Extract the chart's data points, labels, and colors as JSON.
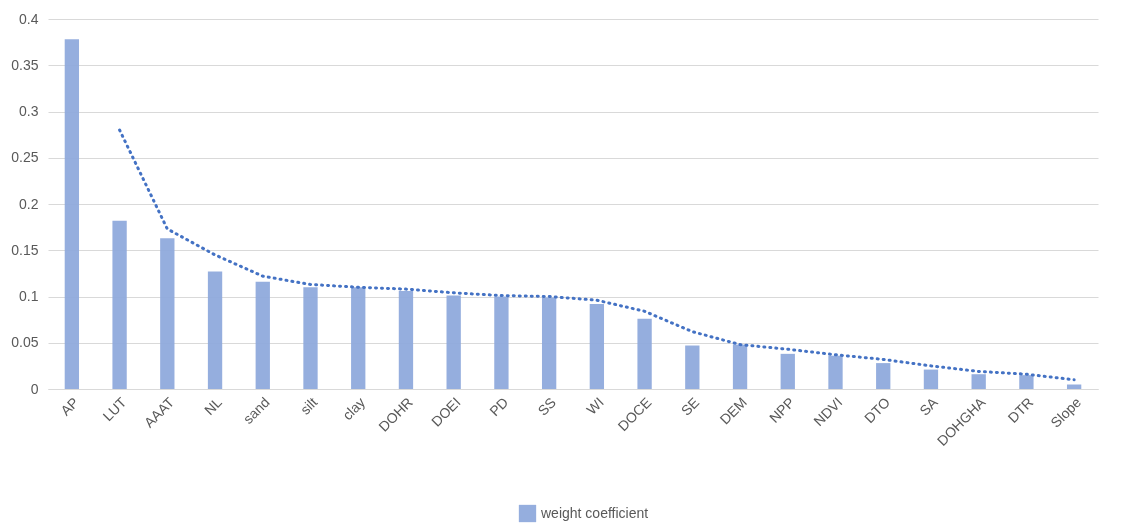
{
  "chart_data": {
    "type": "bar",
    "categories": [
      "AP",
      "LUT",
      "AAAT",
      "NL",
      "sand",
      "silt",
      "clay",
      "DOHR",
      "DOEI",
      "PD",
      "SS",
      "WI",
      "DOCE",
      "SE",
      "DEM",
      "NPP",
      "NDVI",
      "DTO",
      "SA",
      "DOHGHA",
      "DTR",
      "Slope"
    ],
    "series": [
      {
        "name": "weight coefficient",
        "color": "#8faadc",
        "values": [
          0.378,
          0.182,
          0.163,
          0.127,
          0.116,
          0.11,
          0.11,
          0.106,
          0.101,
          0.1,
          0.099,
          0.092,
          0.076,
          0.047,
          0.048,
          0.038,
          0.036,
          0.028,
          0.021,
          0.016,
          0.015,
          0.005
        ]
      },
      {
        "type": "line",
        "color": "#4472c4",
        "line_style": "dotted",
        "values": [
          null,
          0.28,
          0.173,
          0.145,
          0.122,
          0.113,
          0.11,
          0.108,
          0.104,
          0.101,
          0.1,
          0.096,
          0.084,
          0.062,
          0.048,
          0.043,
          0.037,
          0.032,
          0.025,
          0.019,
          0.016,
          0.01
        ]
      }
    ],
    "ylim": [
      0,
      0.4
    ],
    "yticks": [
      0,
      0.05,
      0.1,
      0.15,
      0.2,
      0.25,
      0.3,
      0.35,
      0.4
    ],
    "grid": "y",
    "legend": "bottom"
  }
}
